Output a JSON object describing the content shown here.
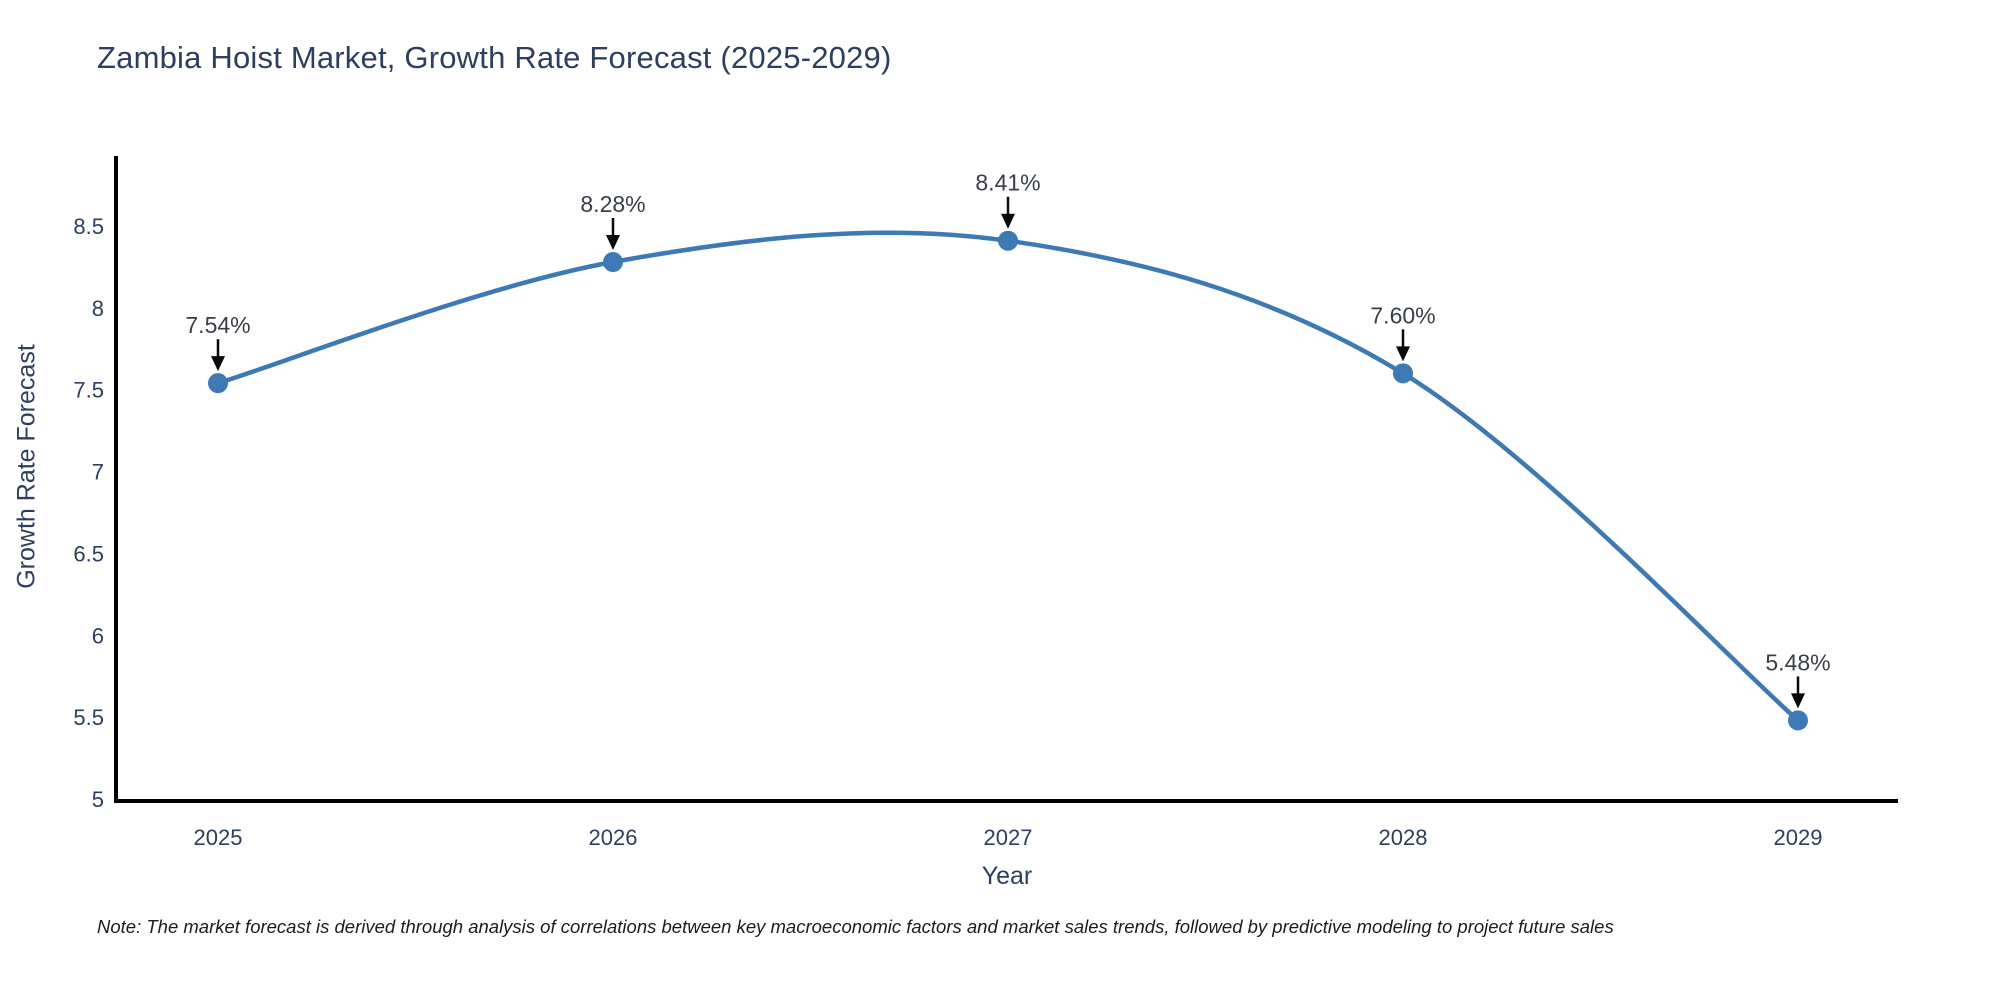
{
  "title": "Zambia Hoist Market, Growth Rate Forecast (2025-2029)",
  "note": "Note: The market forecast is derived through analysis of correlations between key macroeconomic factors and market sales trends, followed by predictive modeling to project future sales",
  "chart_data": {
    "type": "line",
    "line_shape": "spline",
    "title": "Zambia Hoist Market, Growth Rate Forecast (2025-2029)",
    "xlabel": "Year",
    "ylabel": "Growth Rate Forecast",
    "x": [
      2025,
      2026,
      2027,
      2028,
      2029
    ],
    "values": [
      7.54,
      8.28,
      8.41,
      7.6,
      5.48
    ],
    "point_labels": [
      "7.54%",
      "8.28%",
      "8.41%",
      "7.60%",
      "5.48%"
    ],
    "xticks": [
      "2025",
      "2026",
      "2027",
      "2028",
      "2029"
    ],
    "yticks": [
      {
        "value": 5,
        "label": "5"
      },
      {
        "value": 5.5,
        "label": "5.5"
      },
      {
        "value": 6,
        "label": "6"
      },
      {
        "value": 6.5,
        "label": "6.5"
      },
      {
        "value": 7,
        "label": "7"
      },
      {
        "value": 7.5,
        "label": "7.5"
      },
      {
        "value": 8,
        "label": "8"
      },
      {
        "value": 8.5,
        "label": "8.5"
      }
    ],
    "ylim": [
      5,
      8.92
    ],
    "grid": false,
    "legend": "none",
    "colors": {
      "line": "#3c79b5",
      "marker": "#3c79b5",
      "axis": "#000000",
      "arrow": "#0a0a0a",
      "text": "#2d3e5f",
      "annotation": "#3a3f47"
    }
  }
}
